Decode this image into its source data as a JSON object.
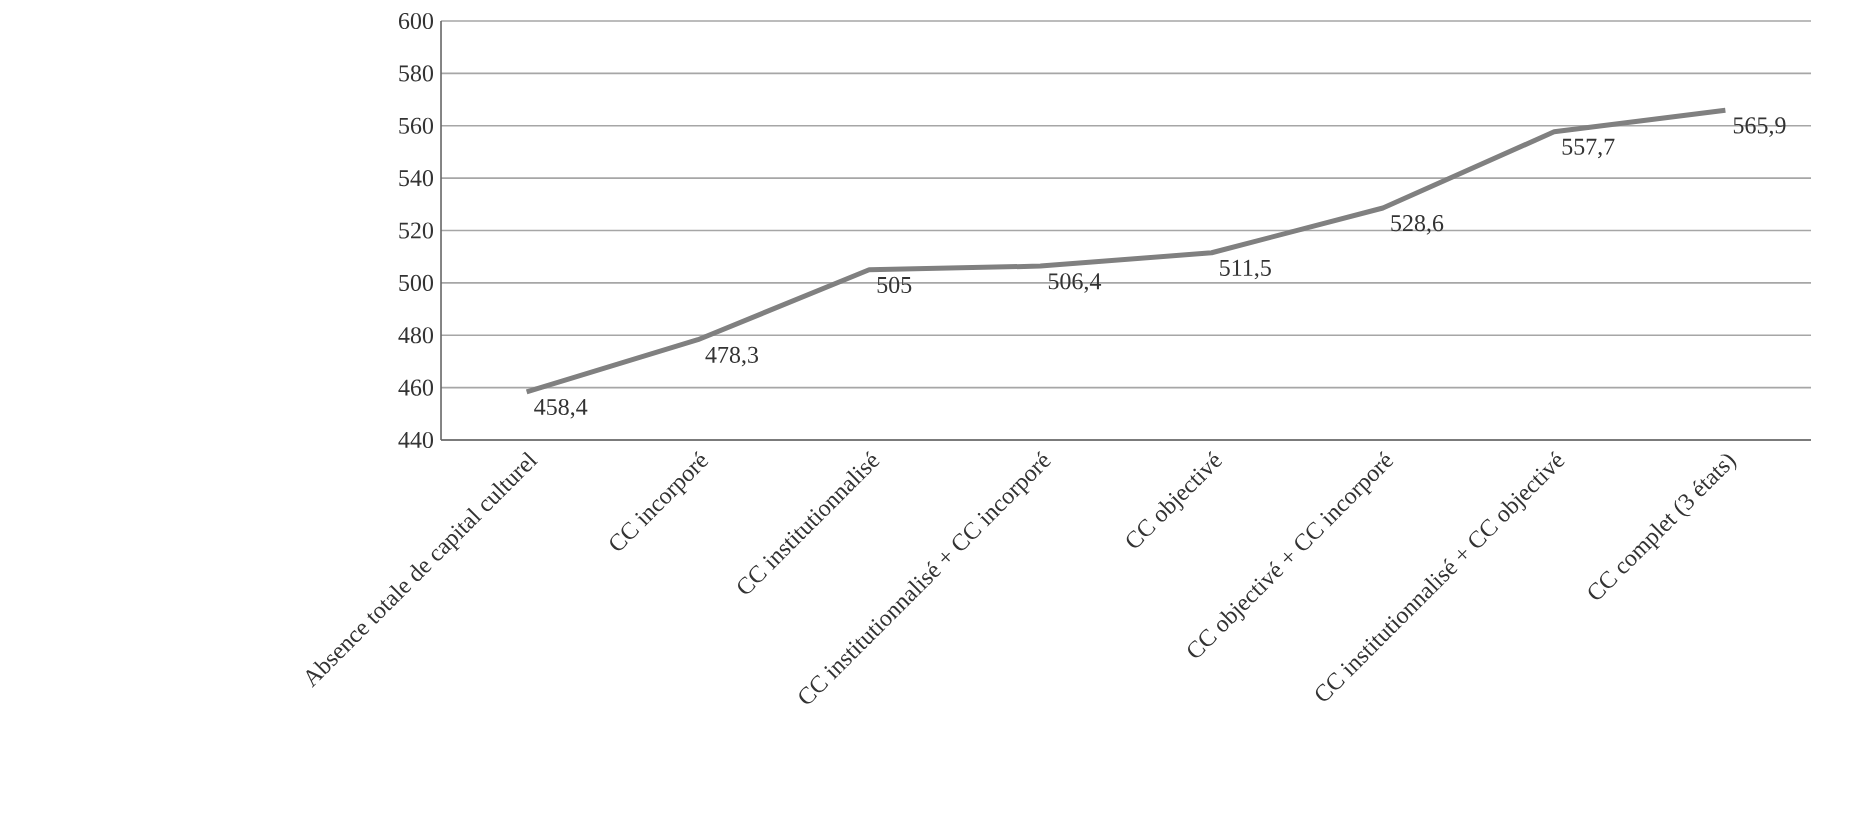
{
  "chart_data": {
    "type": "line",
    "categories": [
      "Absence totale de capital culturel",
      "CC incorporé",
      "CC institutionnalisé",
      "CC institutionnalisé + CC incorporé",
      "CC objectivé",
      "CC objectivé + CC incorporé",
      "CC institutionnalisé + CC objectivé",
      "CC complet (3 états)"
    ],
    "values": [
      458.4,
      478.3,
      505,
      506.4,
      511.5,
      528.6,
      557.7,
      565.9
    ],
    "value_labels": [
      "458,4",
      "478,3",
      "505",
      "506,4",
      "511,5",
      "528,6",
      "557,7",
      "565,9"
    ],
    "color": "#808080",
    "ylim": [
      440,
      600
    ],
    "yticks": [
      440,
      460,
      480,
      500,
      520,
      540,
      560,
      580,
      600
    ],
    "grid": "y",
    "marker": "none",
    "line_style": "solid"
  }
}
